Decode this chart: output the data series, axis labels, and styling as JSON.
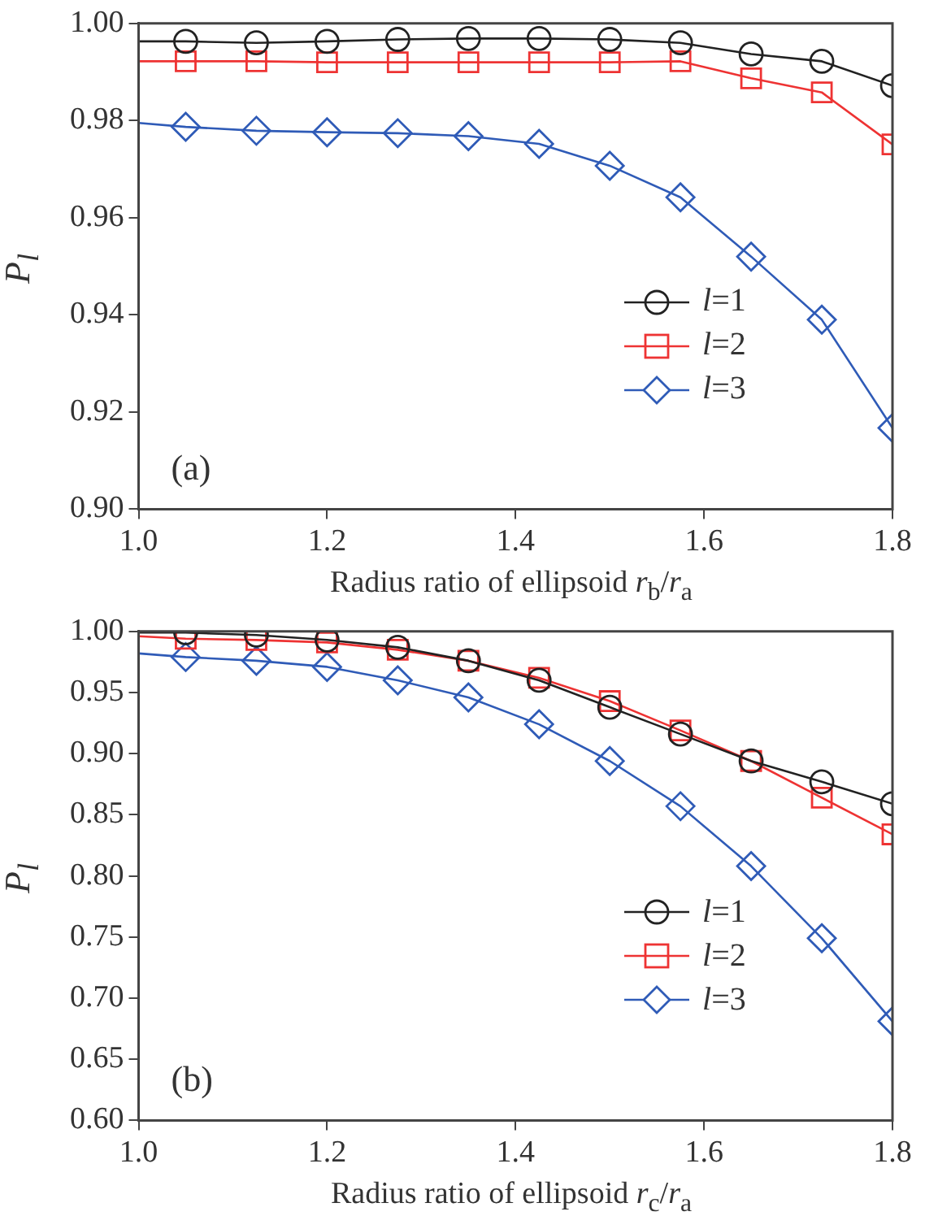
{
  "chart_data": [
    {
      "type": "line",
      "xlabel": "Radius ratio of ellipsoid r$_{b}$/r$_{a}$",
      "ylabel": "P$_{l}$",
      "annotations": [
        "(a)"
      ],
      "x": [
        1.0,
        1.05,
        1.125,
        1.2,
        1.275,
        1.35,
        1.425,
        1.5,
        1.575,
        1.65,
        1.725,
        1.8
      ],
      "series": [
        {
          "name": "l=1",
          "color": "#222222",
          "marker": "circle",
          "values": [
            0.9963,
            0.9963,
            0.996,
            0.9963,
            0.9967,
            0.9969,
            0.9969,
            0.9967,
            0.996,
            0.9937,
            0.9922,
            0.9872
          ]
        },
        {
          "name": "l=2",
          "color": "#ee3333",
          "marker": "square",
          "values": [
            0.9922,
            0.9922,
            0.9922,
            0.992,
            0.992,
            0.992,
            0.992,
            0.992,
            0.9922,
            0.9887,
            0.9858,
            0.9751
          ]
        },
        {
          "name": "l=3",
          "color": "#2f5bb7",
          "marker": "diamond",
          "values": [
            0.9795,
            0.9787,
            0.9779,
            0.9776,
            0.9774,
            0.9768,
            0.9752,
            0.9707,
            0.9642,
            0.952,
            0.939,
            0.9167
          ]
        }
      ],
      "xlim": [
        1.0,
        1.8
      ],
      "xticks": [
        {
          "value": 1,
          "label": "1.0"
        },
        {
          "value": 1.2,
          "label": "1.2"
        },
        {
          "value": 1.4,
          "label": "1.4"
        },
        {
          "value": 1.6,
          "label": "1.6"
        },
        {
          "value": 1.8,
          "label": "1.8"
        }
      ],
      "ylim": [
        0.9,
        1.0
      ],
      "yticks": [
        {
          "value": 0.9,
          "label": "0.90"
        },
        {
          "value": 0.92,
          "label": "0.92"
        },
        {
          "value": 0.94,
          "label": "0.94"
        },
        {
          "value": 0.96,
          "label": "0.96"
        },
        {
          "value": 0.98,
          "label": "0.98"
        },
        {
          "value": 1,
          "label": "1.00"
        }
      ],
      "grid": false,
      "legend": "bottom right"
    },
    {
      "type": "line",
      "xlabel": "Radius ratio of ellipsoid r$_{c}$/r$_{a}$",
      "ylabel": "P$_{l}$",
      "annotations": [
        "(b)"
      ],
      "x": [
        1.0,
        1.05,
        1.125,
        1.2,
        1.275,
        1.35,
        1.425,
        1.5,
        1.575,
        1.65,
        1.725,
        1.8
      ],
      "series": [
        {
          "name": "l=1",
          "color": "#222222",
          "marker": "circle",
          "values": [
            0.999,
            0.999,
            0.997,
            0.993,
            0.987,
            0.976,
            0.96,
            0.938,
            0.916,
            0.894,
            0.877,
            0.859
          ]
        },
        {
          "name": "l=2",
          "color": "#ee3333",
          "marker": "square",
          "values": [
            0.996,
            0.994,
            0.993,
            0.991,
            0.985,
            0.976,
            0.962,
            0.943,
            0.919,
            0.894,
            0.864,
            0.834
          ]
        },
        {
          "name": "l=3",
          "color": "#2f5bb7",
          "marker": "diamond",
          "values": [
            0.982,
            0.979,
            0.976,
            0.971,
            0.96,
            0.946,
            0.924,
            0.894,
            0.857,
            0.808,
            0.749,
            0.681
          ]
        }
      ],
      "xlim": [
        1.0,
        1.8
      ],
      "xticks": [
        {
          "value": 1,
          "label": "1.0"
        },
        {
          "value": 1.2,
          "label": "1.2"
        },
        {
          "value": 1.4,
          "label": "1.4"
        },
        {
          "value": 1.6,
          "label": "1.6"
        },
        {
          "value": 1.8,
          "label": "1.8"
        }
      ],
      "ylim": [
        0.6,
        1.0
      ],
      "yticks": [
        {
          "value": 0.6,
          "label": "0.60"
        },
        {
          "value": 0.65,
          "label": "0.65"
        },
        {
          "value": 0.7,
          "label": "0.70"
        },
        {
          "value": 0.75,
          "label": "0.75"
        },
        {
          "value": 0.8,
          "label": "0.80"
        },
        {
          "value": 0.85,
          "label": "0.85"
        },
        {
          "value": 0.9,
          "label": "0.90"
        },
        {
          "value": 0.95,
          "label": "0.95"
        },
        {
          "value": 1,
          "label": "1.00"
        }
      ],
      "grid": false,
      "legend": "bottom right"
    }
  ]
}
